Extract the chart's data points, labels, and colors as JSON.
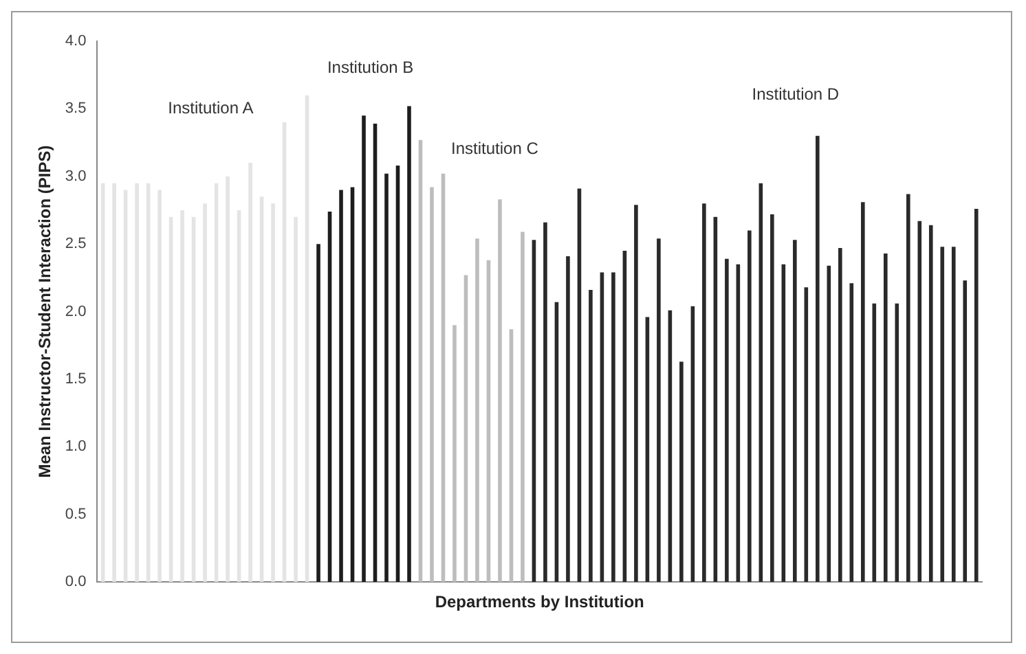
{
  "chart_data": {
    "type": "bar",
    "ylabel": "Mean Instructor-Student Interaction (PIPS)",
    "xlabel": "Departments by Institution",
    "categories": [
      null,
      null,
      null,
      null,
      null,
      null,
      null,
      null,
      null,
      null,
      null,
      null,
      null,
      null,
      null,
      null,
      null,
      null,
      null,
      null,
      null,
      null,
      null,
      null,
      null,
      null,
      null,
      null,
      null,
      null,
      null,
      null,
      null,
      null,
      null,
      null,
      null,
      null,
      null,
      null,
      null,
      null,
      null,
      null,
      null,
      null,
      null,
      null,
      null,
      null,
      null,
      null,
      null,
      null,
      null,
      null,
      null,
      null,
      null,
      null,
      null,
      null,
      null,
      null,
      null,
      null,
      null,
      null,
      null,
      null,
      null,
      null,
      null,
      null,
      null,
      null,
      null,
      null
    ],
    "values": [
      2.95,
      2.95,
      2.9,
      2.95,
      2.95,
      2.9,
      2.7,
      2.75,
      2.7,
      2.8,
      2.95,
      3.0,
      2.75,
      3.1,
      2.85,
      2.8,
      3.4,
      2.7,
      3.6,
      2.5,
      2.74,
      2.9,
      2.92,
      3.45,
      3.39,
      3.02,
      3.08,
      3.52,
      3.27,
      2.92,
      3.02,
      1.9,
      2.27,
      2.54,
      2.38,
      2.83,
      1.87,
      2.59,
      2.53,
      2.66,
      2.07,
      2.41,
      2.91,
      2.16,
      2.29,
      2.29,
      2.45,
      2.79,
      1.96,
      2.54,
      2.01,
      1.63,
      2.04,
      2.8,
      2.7,
      2.39,
      2.35,
      2.6,
      2.95,
      2.72,
      2.35,
      2.53,
      2.18,
      3.3,
      2.34,
      2.47,
      2.21,
      2.81,
      2.06,
      2.43,
      2.06,
      2.87,
      2.67,
      2.64,
      2.48,
      2.48,
      2.23,
      2.76
    ],
    "colors": [
      "#e4e4e4",
      "#e4e4e4",
      "#e4e4e4",
      "#e4e4e4",
      "#e4e4e4",
      "#e4e4e4",
      "#e4e4e4",
      "#e4e4e4",
      "#e4e4e4",
      "#e4e4e4",
      "#e4e4e4",
      "#e4e4e4",
      "#e4e4e4",
      "#e4e4e4",
      "#e4e4e4",
      "#e4e4e4",
      "#e4e4e4",
      "#e4e4e4",
      "#e4e4e4",
      "#1e1e1e",
      "#1e1e1e",
      "#1e1e1e",
      "#1e1e1e",
      "#1e1e1e",
      "#1e1e1e",
      "#1e1e1e",
      "#1e1e1e",
      "#1e1e1e",
      "#bdbdbd",
      "#bdbdbd",
      "#bdbdbd",
      "#bdbdbd",
      "#bdbdbd",
      "#bdbdbd",
      "#bdbdbd",
      "#bdbdbd",
      "#bdbdbd",
      "#bdbdbd",
      "#2a2a2a",
      "#2a2a2a",
      "#2a2a2a",
      "#2a2a2a",
      "#2a2a2a",
      "#2a2a2a",
      "#2a2a2a",
      "#2a2a2a",
      "#2a2a2a",
      "#2a2a2a",
      "#2a2a2a",
      "#2a2a2a",
      "#2a2a2a",
      "#2a2a2a",
      "#2a2a2a",
      "#2a2a2a",
      "#2a2a2a",
      "#2a2a2a",
      "#2a2a2a",
      "#2a2a2a",
      "#2a2a2a",
      "#2a2a2a",
      "#2a2a2a",
      "#2a2a2a",
      "#2a2a2a",
      "#2a2a2a",
      "#2a2a2a",
      "#2a2a2a",
      "#2a2a2a",
      "#2a2a2a",
      "#2a2a2a",
      "#2a2a2a",
      "#2a2a2a",
      "#2a2a2a",
      "#2a2a2a",
      "#2a2a2a",
      "#2a2a2a",
      "#2a2a2a",
      "#2a2a2a",
      "#2a2a2a"
    ],
    "ylim": [
      0,
      4
    ],
    "yticks": [
      {
        "value": 0,
        "label": "0.0"
      },
      {
        "value": 0.5,
        "label": "0.5"
      },
      {
        "value": 1,
        "label": "1.0"
      },
      {
        "value": 1.5,
        "label": "1.5"
      },
      {
        "value": 2,
        "label": "2.0"
      },
      {
        "value": 2.5,
        "label": "2.5"
      },
      {
        "value": 3,
        "label": "3.0"
      },
      {
        "value": 3.5,
        "label": "3.5"
      },
      {
        "value": 4,
        "label": "4.0"
      }
    ],
    "annotations": [
      "Institution A",
      "Institution B",
      "Institution C",
      "Institution D"
    ],
    "grid": false,
    "legend": false
  }
}
